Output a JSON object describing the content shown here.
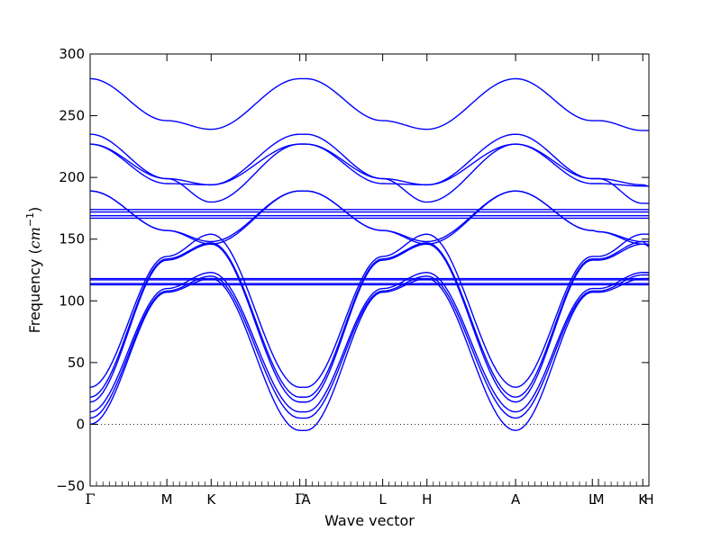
{
  "chart_data": {
    "type": "line",
    "title": "",
    "xlabel": "Wave vector",
    "ylabel": "Frequency (",
    "ylabel_unit": "cm",
    "ylabel_unit_exp": "−1",
    "ylabel_close": ")",
    "ylim": [
      -50,
      300
    ],
    "y_ticks": [
      -50,
      0,
      50,
      100,
      150,
      200,
      250,
      300
    ],
    "y_tick_labels": [
      "−50",
      "0",
      "50",
      "100",
      "150",
      "200",
      "250",
      "300"
    ],
    "x_ticks": [
      {
        "label": "Γ",
        "x": 0.0
      },
      {
        "label": "M",
        "x": 1.0
      },
      {
        "label": "K",
        "x": 1.577
      },
      {
        "label": "Γ",
        "x": 2.732
      },
      {
        "label": "A",
        "x": 2.812
      },
      {
        "label": "L",
        "x": 3.812
      },
      {
        "label": "H",
        "x": 4.389
      },
      {
        "label": "A",
        "x": 5.544
      },
      {
        "label": "L",
        "x": 6.544
      },
      {
        "label": "M",
        "x": 6.624
      },
      {
        "label": "K",
        "x": 7.201
      },
      {
        "label": "H",
        "x": 7.281
      }
    ],
    "zero_line": true,
    "line_color": "#0000ff",
    "series": [
      {
        "x": [
          0,
          1,
          1.577,
          2.732,
          2.812,
          3.812,
          4.389,
          5.544,
          6.544,
          6.624,
          7.201,
          7.281
        ],
        "values": [
          280,
          246,
          239,
          280,
          280,
          246,
          239,
          280,
          246,
          246,
          238,
          238
        ]
      },
      {
        "x": [
          0,
          1,
          1.577,
          2.732,
          2.812,
          3.812,
          4.389,
          5.544,
          6.544,
          6.624,
          7.201,
          7.281
        ],
        "values": [
          235,
          199,
          194,
          235,
          235,
          199,
          194,
          235,
          199,
          199,
          194,
          193
        ]
      },
      {
        "x": [
          0,
          1,
          1.577,
          2.732,
          2.812,
          3.812,
          4.389,
          5.544,
          6.544,
          6.624,
          7.201,
          7.281
        ],
        "values": [
          227,
          195,
          194,
          227,
          227,
          195,
          194,
          227,
          195,
          195,
          193,
          193
        ]
      },
      {
        "x": [
          0,
          1,
          1.577,
          2.732,
          2.812,
          3.812,
          4.389,
          5.544,
          6.544,
          6.624,
          7.201,
          7.281
        ],
        "values": [
          227,
          199,
          180,
          227,
          227,
          199,
          180,
          227,
          199,
          199,
          179,
          179
        ]
      },
      {
        "x": [
          0,
          1,
          1.577,
          2.732,
          2.812,
          3.812,
          4.389,
          5.544,
          6.544,
          6.624,
          7.201,
          7.281
        ],
        "values": [
          189,
          157,
          146,
          189,
          189,
          157,
          146,
          189,
          157,
          156,
          146,
          145
        ]
      },
      {
        "x": [
          0,
          1,
          1.577,
          2.732,
          2.812,
          3.812,
          4.389,
          5.544,
          6.544,
          6.624,
          7.201,
          7.281
        ],
        "values": [
          189,
          157,
          148,
          189,
          189,
          157,
          148,
          189,
          157,
          156,
          148,
          144
        ]
      },
      {
        "x": [
          0,
          7.281
        ],
        "values": [
          174,
          174
        ]
      },
      {
        "x": [
          0,
          7.281
        ],
        "values": [
          172,
          172
        ]
      },
      {
        "x": [
          0,
          7.281
        ],
        "values": [
          169,
          169
        ]
      },
      {
        "x": [
          0,
          7.281
        ],
        "values": [
          167,
          167
        ]
      },
      {
        "x": [
          0,
          7.281
        ],
        "values": [
          118,
          118
        ]
      },
      {
        "x": [
          0,
          7.281
        ],
        "values": [
          117,
          117
        ]
      },
      {
        "x": [
          0,
          7.281
        ],
        "values": [
          114,
          114
        ]
      },
      {
        "x": [
          0,
          7.281
        ],
        "values": [
          113,
          113
        ]
      },
      {
        "x": [
          0,
          1,
          1.577,
          2.732,
          2.812,
          3.812,
          4.389,
          5.544,
          6.544,
          6.624,
          7.201,
          7.281
        ],
        "values": [
          30,
          136,
          154,
          30,
          30,
          136,
          154,
          30,
          136,
          136,
          154,
          154
        ]
      },
      {
        "x": [
          0,
          1,
          1.577,
          2.732,
          2.812,
          3.812,
          4.389,
          5.544,
          6.544,
          6.624,
          7.201,
          7.281
        ],
        "values": [
          22,
          134,
          147,
          22,
          22,
          134,
          147,
          22,
          134,
          134,
          148,
          148
        ]
      },
      {
        "x": [
          0,
          1,
          1.577,
          2.732,
          2.812,
          3.812,
          4.389,
          5.544,
          6.544,
          6.624,
          7.201,
          7.281
        ],
        "values": [
          18,
          133,
          146,
          18,
          18,
          133,
          146,
          18,
          133,
          133,
          146,
          146
        ]
      },
      {
        "x": [
          0,
          1,
          1.577,
          2.732,
          2.812,
          3.812,
          4.389,
          5.544,
          6.544,
          6.624,
          7.201,
          7.281
        ],
        "values": [
          10,
          110,
          123,
          10,
          10,
          110,
          123,
          10,
          110,
          110,
          123,
          123
        ]
      },
      {
        "x": [
          0,
          1,
          1.577,
          2.732,
          2.812,
          3.812,
          4.389,
          5.544,
          6.544,
          6.624,
          7.201,
          7.281
        ],
        "values": [
          5,
          108,
          120,
          5,
          5,
          108,
          120,
          5,
          108,
          108,
          121,
          121
        ]
      },
      {
        "x": [
          0,
          1,
          1.577,
          2.732,
          2.812,
          3.812,
          4.389,
          5.544,
          6.544,
          6.624,
          7.201,
          7.281
        ],
        "values": [
          0,
          107,
          118,
          -5,
          -5,
          107,
          118,
          -5,
          107,
          107,
          118,
          118
        ]
      }
    ]
  }
}
